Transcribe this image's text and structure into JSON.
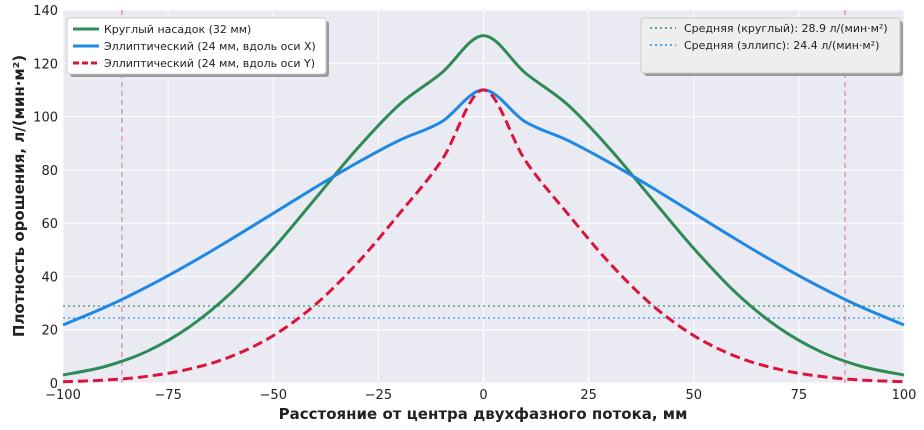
{
  "chart_data": {
    "type": "line",
    "title": "",
    "xlabel": "Расстояние от центра двухфазного потока, мм",
    "ylabel": "Плотность орошения, л/(мин·м²)",
    "xlim": [
      -100,
      100
    ],
    "ylim": [
      0,
      140
    ],
    "xticks": [
      -100,
      -75,
      -50,
      -25,
      0,
      25,
      50,
      75,
      100
    ],
    "yticks": [
      0,
      20,
      40,
      60,
      80,
      100,
      120,
      140
    ],
    "grid": true,
    "series": [
      {
        "name": "Круглый насадок (32 мм)",
        "color": "#2e8b57",
        "style": "solid",
        "x": [
          -100,
          -90,
          -80,
          -70,
          -60,
          -50,
          -40,
          -30,
          -20,
          -10,
          0,
          10,
          20,
          30,
          40,
          50,
          60,
          70,
          80,
          90,
          100
        ],
        "y": [
          3.0,
          6.2,
          11.9,
          21.0,
          33.9,
          50.5,
          69.2,
          88.0,
          104.5,
          116.3,
          130.4,
          116.3,
          104.5,
          88.0,
          69.2,
          50.5,
          33.9,
          21.0,
          11.9,
          6.2,
          3.0
        ]
      },
      {
        "name": "Эллиптический (24 мм, вдоль оси X)",
        "color": "#1f88e5",
        "style": "solid",
        "x": [
          -100,
          -90,
          -80,
          -70,
          -60,
          -50,
          -40,
          -30,
          -20,
          -10,
          0,
          10,
          20,
          30,
          40,
          50,
          60,
          70,
          80,
          90,
          100
        ],
        "y": [
          21.8,
          28.4,
          36.1,
          44.7,
          54.0,
          63.7,
          73.4,
          82.7,
          91.1,
          98.0,
          110.0,
          98.0,
          91.1,
          82.7,
          73.4,
          63.7,
          54.0,
          44.7,
          36.1,
          28.4,
          21.8
        ]
      },
      {
        "name": "Эллиптический (24 мм, вдоль оси Y)",
        "color": "#dc143c",
        "style": "dashed",
        "x": [
          -100,
          -90,
          -80,
          -70,
          -60,
          -50,
          -40,
          -30,
          -20,
          -10,
          0,
          10,
          20,
          30,
          40,
          50,
          60,
          70,
          80,
          90,
          100
        ],
        "y": [
          0.5,
          1.1,
          2.5,
          5.2,
          10.0,
          17.8,
          29.4,
          45.0,
          63.6,
          83.4,
          110.0,
          83.4,
          63.6,
          45.0,
          29.4,
          17.8,
          10.0,
          5.2,
          2.5,
          1.1,
          0.5
        ]
      }
    ],
    "reference_lines": [
      {
        "name": "Средняя (круглый): 28.9 л/(мин·м²)",
        "orientation": "horizontal",
        "value": 28.9,
        "color": "#2e8b57",
        "style": "dotted"
      },
      {
        "name": "Средняя (эллипс): 24.4 л/(мин·м²)",
        "orientation": "horizontal",
        "value": 24.4,
        "color": "#1f88e5",
        "style": "dotted"
      },
      {
        "orientation": "vertical",
        "value": -86,
        "color": "#e06080",
        "style": "dashed"
      },
      {
        "orientation": "vertical",
        "value": 86,
        "color": "#e06080",
        "style": "dashed"
      }
    ],
    "legends": [
      {
        "placement": "upper-left",
        "entries": [
          0,
          1,
          2
        ]
      },
      {
        "placement": "upper-right",
        "entries": [
          "Средняя (круглый): 28.9 л/(мин·м²)",
          "Средняя (эллипс): 24.4 л/(мин·м²)"
        ]
      }
    ],
    "colors": {
      "plot_background": "#eaeaf2",
      "grid": "#ffffff"
    }
  }
}
